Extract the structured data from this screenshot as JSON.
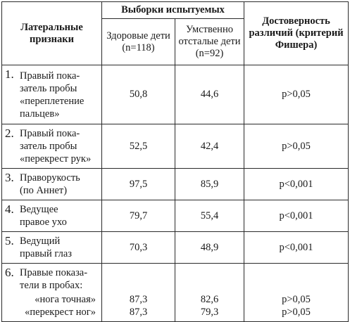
{
  "headers": {
    "features": "Латеральные признаки",
    "samples_group": "Выборки испытуемых",
    "healthy": "Здоровые дети (n=118)",
    "retarded": "Умственно отсталые дети (n=92)",
    "significance": "Достоверность различий (критерий Фишера)"
  },
  "rows": [
    {
      "num": "1.",
      "lines": [
        "Правый пока-",
        "затель пробы",
        "«переплетение",
        "пальцев»"
      ],
      "healthy": "50,8",
      "retarded": "44,6",
      "p": "p>0,05"
    },
    {
      "num": "2.",
      "lines": [
        "Правый пока-",
        "затель пробы",
        "«перекрест рук»"
      ],
      "healthy": "52,5",
      "retarded": "42,4",
      "p": "p>0,05"
    },
    {
      "num": "3.",
      "lines": [
        "Праворукость",
        "(по Аннет)"
      ],
      "healthy": "97,5",
      "retarded": "85,9",
      "p": "p<0,001"
    },
    {
      "num": "4.",
      "lines": [
        "Ведущее",
        "правое ухо"
      ],
      "healthy": "79,7",
      "retarded": "55,4",
      "p": "p<0,001"
    },
    {
      "num": "5.",
      "lines": [
        "Ведущий",
        "правый глаз"
      ],
      "healthy": "70,3",
      "retarded": "48,9",
      "p": "p<0,001"
    }
  ],
  "row6": {
    "num": "6.",
    "lines": [
      "Правые показа-",
      "тели в пробах:"
    ],
    "sub1": "«нога точная»",
    "sub2": "«перекрест ног»",
    "healthy1": "87,3",
    "healthy2": "87,3",
    "retarded1": "82,6",
    "retarded2": "79,3",
    "p1": "p>0,05",
    "p2": "p>0,05"
  }
}
